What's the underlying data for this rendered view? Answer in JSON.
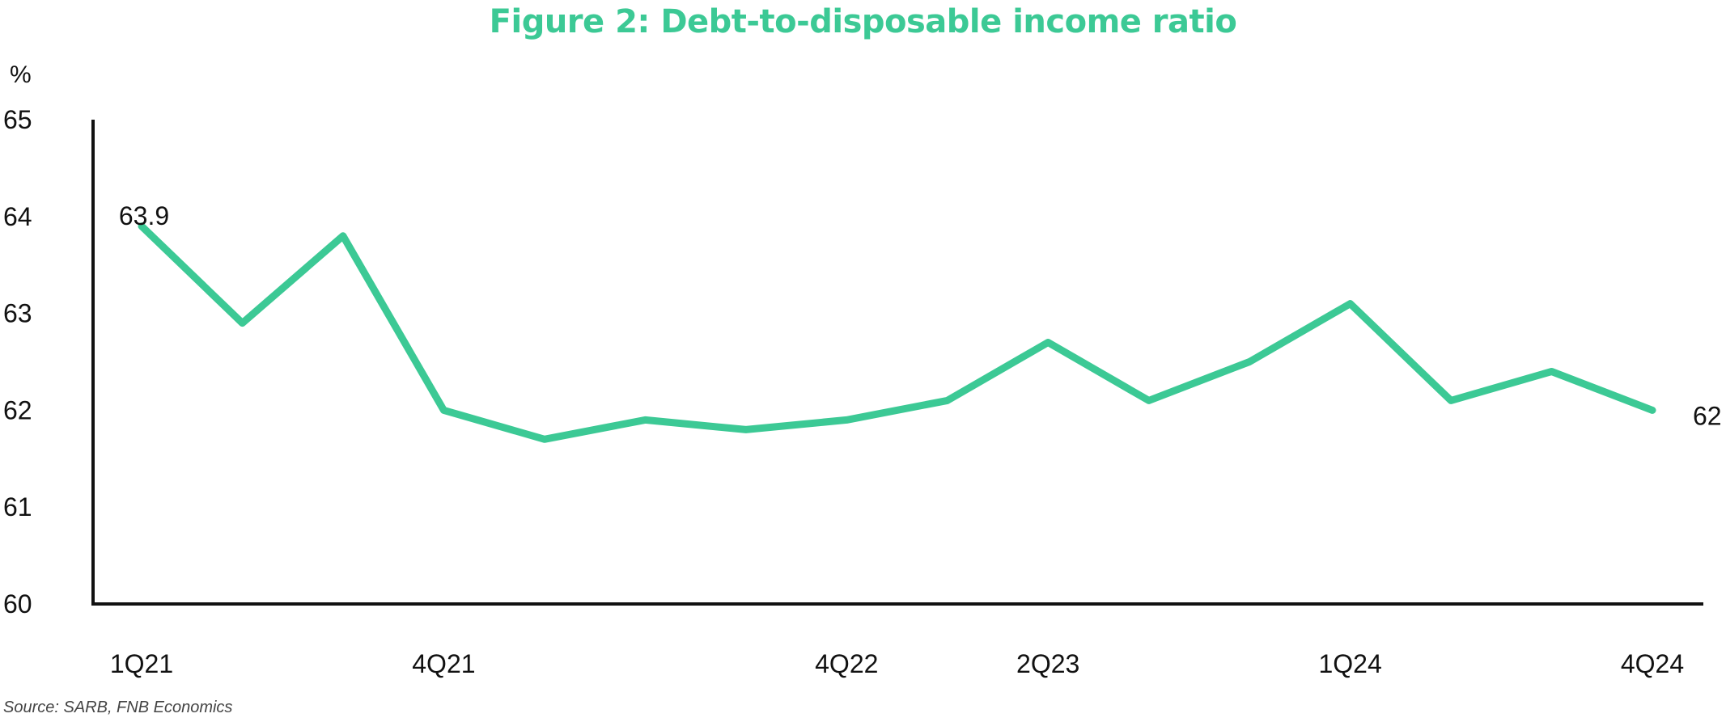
{
  "title": "Figure 2: Debt-to-disposable income ratio",
  "source": "Source: SARB, FNB Economics",
  "colors": {
    "title": "#3cc995",
    "line": "#3cc995",
    "axis": "#111111",
    "text": "#111111"
  },
  "chart_data": {
    "type": "line",
    "ylabel": "%",
    "xlabel": "",
    "ylim": [
      60,
      65
    ],
    "yticks": [
      60,
      61,
      62,
      63,
      64,
      65
    ],
    "grid": false,
    "legend": "none",
    "x": [
      "1Q21",
      "2Q21",
      "3Q21",
      "4Q21",
      "1Q22",
      "2Q22",
      "3Q22",
      "4Q22",
      "1Q23",
      "2Q23",
      "3Q23",
      "4Q23",
      "1Q24",
      "2Q24",
      "3Q24",
      "4Q24"
    ],
    "xtick_labels": [
      "1Q21",
      "4Q21",
      "4Q22",
      "2Q23",
      "1Q24",
      "4Q24"
    ],
    "series": [
      {
        "values": [
          63.9,
          62.9,
          63.8,
          62.0,
          61.7,
          61.9,
          61.8,
          61.9,
          62.1,
          62.7,
          62.1,
          62.5,
          63.1,
          62.1,
          62.4,
          62.0
        ]
      }
    ],
    "annotations": [
      {
        "text": "63.9",
        "x": "1Q21",
        "y": 63.9
      },
      {
        "text": "62",
        "x": "4Q24",
        "y": 62.0
      }
    ]
  }
}
